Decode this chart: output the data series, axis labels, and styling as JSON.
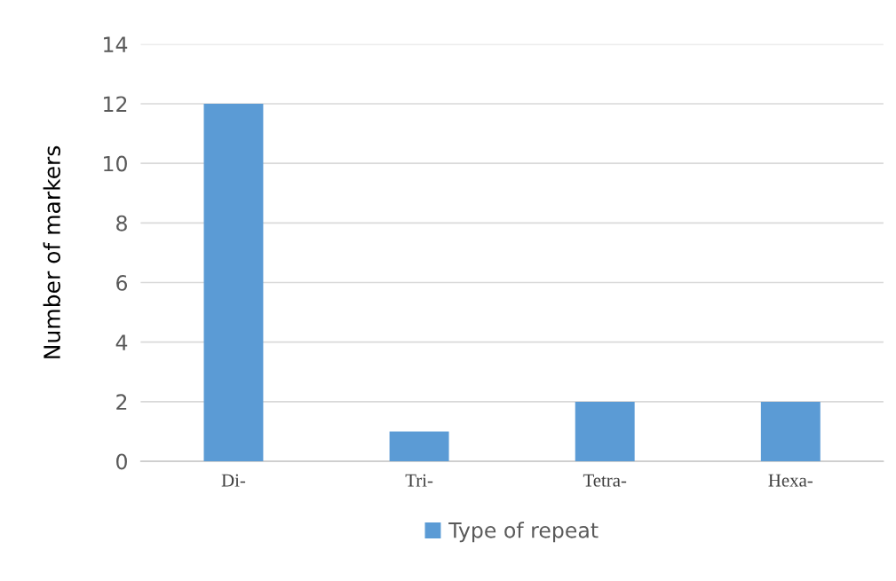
{
  "chart_data": {
    "type": "bar",
    "ylabel": "Number of markers",
    "categories": [
      "Di-",
      "Tri-",
      "Tetra-",
      "Hexa-"
    ],
    "series": [
      {
        "name": "Type of repeat",
        "color": "#5b9bd5",
        "values": [
          12,
          1,
          2,
          2
        ]
      }
    ],
    "ylim": [
      0,
      14
    ],
    "yticks": [
      0,
      2,
      4,
      6,
      8,
      10,
      12,
      14
    ],
    "grid": "y",
    "legend": "bottom"
  }
}
